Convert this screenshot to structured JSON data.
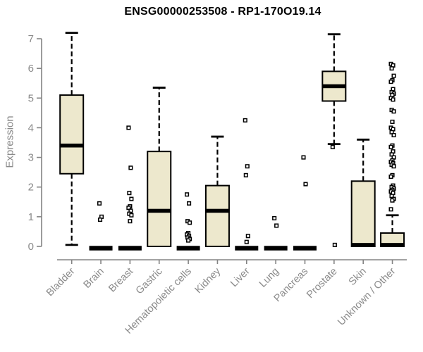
{
  "title": "ENSG00000253508 - RP1-170O19.14",
  "chart_data": {
    "type": "boxplot",
    "title": "ENSG00000253508 - RP1-170O19.14",
    "xlabel": "",
    "ylabel": "Expression",
    "ylim": [
      0,
      7.3
    ],
    "yticks": [
      0,
      1,
      2,
      3,
      4,
      5,
      6,
      7
    ],
    "grid": false,
    "legend": "none",
    "categories": [
      "Bladder",
      "Brain",
      "Breast",
      "Gastric",
      "Hematopoietic cells",
      "Kidney",
      "Liver",
      "Lung",
      "Pancreas",
      "Prostate",
      "Skin",
      "Unknown / Other"
    ],
    "series": [
      {
        "name": "Bladder",
        "whisker_low": 0.05,
        "q1": 2.45,
        "median": 3.4,
        "q3": 5.1,
        "whisker_high": 7.2,
        "outliers": []
      },
      {
        "name": "Brain",
        "whisker_low": 0,
        "q1": 0,
        "median": 0,
        "q3": 0,
        "whisker_high": 0,
        "outliers": [
          1.45,
          1.0,
          0.9
        ]
      },
      {
        "name": "Breast",
        "whisker_low": 0,
        "q1": 0,
        "median": 0,
        "q3": 0,
        "whisker_high": 0,
        "outliers": [
          4.0,
          2.65,
          1.8,
          1.6,
          1.35,
          1.3,
          1.2,
          1.1,
          1.05,
          0.85
        ]
      },
      {
        "name": "Gastric",
        "whisker_low": 0,
        "q1": 0,
        "median": 1.2,
        "q3": 3.2,
        "whisker_high": 5.35,
        "outliers": []
      },
      {
        "name": "Hematopoietic cells",
        "whisker_low": 0,
        "q1": 0,
        "median": 0,
        "q3": 0,
        "whisker_high": 0,
        "outliers": [
          1.75,
          1.45,
          0.85,
          0.8,
          0.45,
          0.4,
          0.35,
          0.3,
          0.25,
          0.2
        ]
      },
      {
        "name": "Kidney",
        "whisker_low": 0,
        "q1": 0,
        "median": 1.2,
        "q3": 2.05,
        "whisker_high": 3.7,
        "outliers": []
      },
      {
        "name": "Liver",
        "whisker_low": 0,
        "q1": 0,
        "median": 0,
        "q3": 0,
        "whisker_high": 0,
        "outliers": [
          4.25,
          2.7,
          2.4,
          0.35,
          0.15
        ]
      },
      {
        "name": "Lung",
        "whisker_low": 0,
        "q1": 0,
        "median": 0,
        "q3": 0,
        "whisker_high": 0,
        "outliers": [
          0.95,
          0.7
        ]
      },
      {
        "name": "Pancreas",
        "whisker_low": 0,
        "q1": 0,
        "median": 0,
        "q3": 0,
        "whisker_high": 0,
        "outliers": [
          3.0,
          2.1
        ]
      },
      {
        "name": "Prostate",
        "whisker_low": 3.45,
        "q1": 4.9,
        "median": 5.4,
        "q3": 5.9,
        "whisker_high": 7.15,
        "outliers": [
          3.35,
          0.05
        ]
      },
      {
        "name": "Skin",
        "whisker_low": 0,
        "q1": 0,
        "median": 0.05,
        "q3": 2.2,
        "whisker_high": 3.6,
        "outliers": []
      },
      {
        "name": "Unknown / Other",
        "whisker_low": 0,
        "q1": 0,
        "median": 0.05,
        "q3": 0.45,
        "whisker_high": 1.05,
        "outliers": [
          6.15,
          6.1,
          6.0,
          5.75,
          5.6,
          5.55,
          5.3,
          5.2,
          5.15,
          5.1,
          5.0,
          4.95,
          4.6,
          4.55,
          4.2,
          4.0,
          3.95,
          3.85,
          3.75,
          3.4,
          3.35,
          3.2,
          3.1,
          3.0,
          2.9,
          2.85,
          2.8,
          2.75,
          2.7,
          2.4,
          2.35,
          2.05,
          2.0,
          1.95,
          1.9,
          1.85,
          1.8,
          1.7,
          1.6,
          1.55,
          1.25
        ]
      }
    ],
    "colors": {
      "box_fill": "#EDE8CD",
      "box_stroke": "#000000",
      "axis": "#848484",
      "tick_label": "#8a8a8a",
      "title": "#000000",
      "background": "#ffffff"
    }
  }
}
